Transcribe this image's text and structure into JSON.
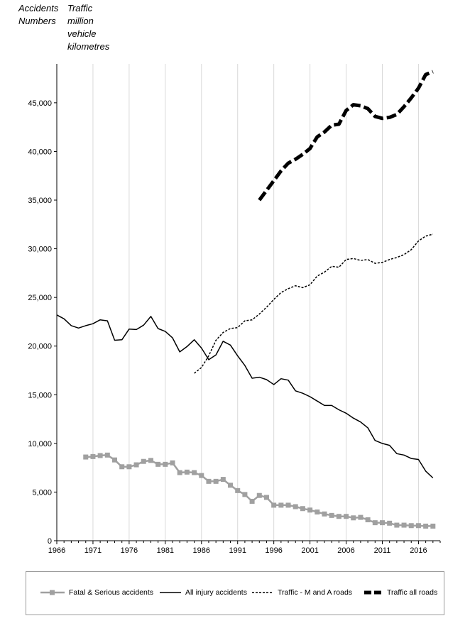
{
  "chart_data": {
    "type": "line",
    "left_axis_title": [
      "Accidents",
      "Numbers"
    ],
    "right_axis_title": [
      "Traffic",
      "million",
      "vehicle",
      "kilometres"
    ],
    "ylim": [
      0,
      49000
    ],
    "y_ticks": [
      0,
      5000,
      10000,
      15000,
      20000,
      25000,
      30000,
      35000,
      40000,
      45000
    ],
    "y_tick_labels": [
      "0",
      "5,000",
      "10,000",
      "15,000",
      "20,000",
      "25,000",
      "30,000",
      "35,000",
      "40,000",
      "45,000"
    ],
    "xlim": [
      1966,
      2019
    ],
    "x_ticks": [
      1966,
      1971,
      1976,
      1981,
      1986,
      1991,
      1996,
      2001,
      2006,
      2011,
      2016
    ],
    "x_tick_labels": [
      "1966",
      "1971",
      "1976",
      "1981",
      "1986",
      "1991",
      "1996",
      "2001",
      "2006",
      "2011",
      "2016"
    ],
    "grid": "vertical",
    "legend_position": "bottom",
    "series": [
      {
        "name": "Fatal & Serious accidents",
        "style": "grey-square-markers",
        "color": "#a0a0a0",
        "x": [
          1970,
          1971,
          1972,
          1973,
          1974,
          1975,
          1976,
          1977,
          1978,
          1979,
          1980,
          1981,
          1982,
          1983,
          1984,
          1985,
          1986,
          1987,
          1988,
          1989,
          1990,
          1991,
          1992,
          1993,
          1994,
          1995,
          1996,
          1997,
          1998,
          1999,
          2000,
          2001,
          2002,
          2003,
          2004,
          2005,
          2006,
          2007,
          2008,
          2009,
          2010,
          2011,
          2012,
          2013,
          2014,
          2015,
          2016,
          2017,
          2018
        ],
        "values": [
          8600,
          8650,
          8750,
          8800,
          8300,
          7600,
          7600,
          7800,
          8150,
          8250,
          7850,
          7850,
          8000,
          7000,
          7050,
          7000,
          6700,
          6100,
          6100,
          6300,
          5700,
          5150,
          4750,
          4050,
          4650,
          4450,
          3650,
          3650,
          3650,
          3500,
          3300,
          3150,
          2950,
          2750,
          2600,
          2500,
          2500,
          2350,
          2400,
          2150,
          1850,
          1850,
          1800,
          1600,
          1600,
          1550,
          1550,
          1500,
          1500
        ]
      },
      {
        "name": "All injury accidents",
        "style": "thin-solid",
        "color": "#000000",
        "x": [
          1966,
          1967,
          1968,
          1969,
          1970,
          1971,
          1972,
          1973,
          1974,
          1975,
          1976,
          1977,
          1978,
          1979,
          1980,
          1981,
          1982,
          1983,
          1984,
          1985,
          1986,
          1987,
          1988,
          1989,
          1990,
          1991,
          1992,
          1993,
          1994,
          1995,
          1996,
          1997,
          1998,
          1999,
          2000,
          2001,
          2002,
          2003,
          2004,
          2005,
          2006,
          2007,
          2008,
          2009,
          2010,
          2011,
          2012,
          2013,
          2014,
          2015,
          2016,
          2017,
          2018
        ],
        "values": [
          23200,
          22800,
          22100,
          21850,
          22100,
          22300,
          22700,
          22600,
          20600,
          20650,
          21750,
          21700,
          22150,
          23050,
          21800,
          21500,
          20850,
          19400,
          19950,
          20650,
          19800,
          18600,
          19100,
          20500,
          20100,
          19000,
          18000,
          16700,
          16800,
          16550,
          16050,
          16650,
          16500,
          15400,
          15150,
          14800,
          14350,
          13900,
          13900,
          13450,
          13100,
          12600,
          12200,
          11600,
          10300,
          10000,
          9800,
          8950,
          8800,
          8450,
          8350,
          7150,
          6450
        ]
      },
      {
        "name": "Traffic - M and A roads",
        "style": "thin-dashed",
        "color": "#000000",
        "x": [
          1985,
          1986,
          1987,
          1988,
          1989,
          1990,
          1991,
          1992,
          1993,
          1994,
          1995,
          1996,
          1997,
          1998,
          1999,
          2000,
          2001,
          2002,
          2003,
          2004,
          2005,
          2006,
          2007,
          2008,
          2009,
          2010,
          2011,
          2012,
          2013,
          2014,
          2015,
          2016,
          2017,
          2018
        ],
        "values": [
          17200,
          17800,
          19000,
          20600,
          21400,
          21800,
          21900,
          22600,
          22700,
          23300,
          24000,
          24800,
          25500,
          25900,
          26200,
          26000,
          26300,
          27200,
          27600,
          28200,
          28100,
          28900,
          29000,
          28800,
          28900,
          28500,
          28600,
          28900,
          29100,
          29400,
          29900,
          30800,
          31300,
          31500
        ]
      },
      {
        "name": "Traffic all roads",
        "style": "thick-dashed",
        "color": "#000000",
        "x": [
          1994,
          1995,
          1996,
          1997,
          1998,
          1999,
          2000,
          2001,
          2002,
          2003,
          2004,
          2005,
          2006,
          2007,
          2008,
          2009,
          2010,
          2011,
          2012,
          2013,
          2014,
          2015,
          2016,
          2017,
          2018
        ],
        "values": [
          35000,
          36000,
          37000,
          38000,
          38800,
          39200,
          39700,
          40300,
          41500,
          42000,
          42700,
          42800,
          44200,
          44800,
          44700,
          44400,
          43600,
          43400,
          43500,
          43800,
          44600,
          45500,
          46500,
          47900,
          48200
        ]
      }
    ]
  }
}
